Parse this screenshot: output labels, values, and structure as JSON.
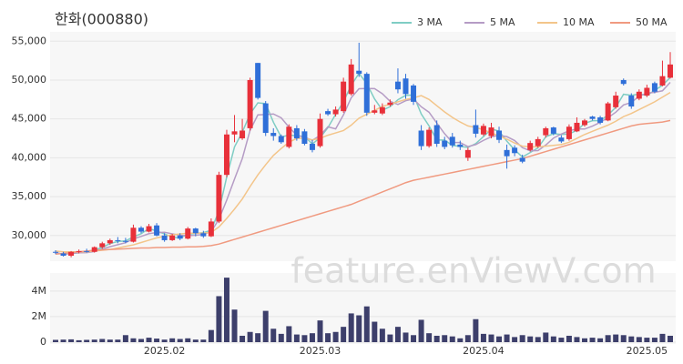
{
  "chart_data": {
    "type": "candlestick",
    "title": "한화(000880)",
    "watermark": "feature.enViewV.com",
    "legend": "top-right",
    "grid": true,
    "up_color": "#e8303a",
    "down_color": "#2f6fd8",
    "categories": [
      null,
      null,
      null,
      null,
      null,
      null,
      null,
      null,
      null,
      null,
      null,
      null,
      null,
      null,
      "2025.02",
      null,
      null,
      null,
      null,
      null,
      null,
      null,
      null,
      null,
      null,
      null,
      null,
      null,
      null,
      null,
      null,
      null,
      null,
      null,
      "2025.03",
      null,
      null,
      null,
      null,
      null,
      null,
      null,
      null,
      null,
      null,
      null,
      null,
      null,
      null,
      null,
      null,
      null,
      null,
      null,
      null,
      "2025.04",
      null,
      null,
      null,
      null,
      null,
      null,
      null,
      null,
      null,
      null,
      null,
      null,
      null,
      null,
      null,
      null,
      null,
      null,
      null,
      null,
      "2025.05",
      null,
      null,
      null
    ],
    "open": [
      27900,
      27700,
      27400,
      27900,
      28000,
      27900,
      28500,
      29000,
      29400,
      29300,
      29200,
      31000,
      30500,
      31300,
      30000,
      29400,
      30000,
      29600,
      30900,
      30300,
      29900,
      31800,
      37800,
      43000,
      42500,
      43800,
      52200,
      47000,
      43200,
      42800,
      41400,
      43800,
      43400,
      41800,
      41500,
      46000,
      45600,
      46000,
      48200,
      51200,
      50800,
      45800,
      45700,
      46800,
      49800,
      50200,
      49300,
      43500,
      41500,
      44200,
      42200,
      42700,
      41700,
      40000,
      44200,
      43000,
      42800,
      43500,
      41000,
      41300,
      40000,
      41000,
      41500,
      42900,
      43900,
      42600,
      42400,
      43400,
      44200,
      45300,
      45200,
      44800,
      46500,
      50000,
      48000,
      47600,
      48000,
      49600,
      49300,
      50300
    ],
    "high": [
      28100,
      27900,
      28000,
      28200,
      28300,
      28600,
      29200,
      29600,
      29800,
      29700,
      31400,
      31200,
      31500,
      31600,
      30300,
      30200,
      30300,
      31100,
      31000,
      30600,
      32200,
      38200,
      43600,
      45500,
      45000,
      50300,
      52200,
      47300,
      43800,
      43000,
      44300,
      44200,
      43700,
      42300,
      45700,
      46300,
      46600,
      50300,
      52700,
      54800,
      51000,
      46800,
      47000,
      47500,
      51500,
      50800,
      49500,
      44200,
      43900,
      44800,
      42700,
      43200,
      42200,
      41300,
      46200,
      44400,
      44500,
      44000,
      41700,
      41600,
      40400,
      42200,
      42700,
      44000,
      44000,
      42900,
      44300,
      45200,
      45000,
      45400,
      45400,
      47200,
      48500,
      50200,
      48300,
      48800,
      49400,
      49800,
      52500,
      53600
    ],
    "low": [
      27600,
      27300,
      27200,
      27700,
      27800,
      27800,
      28300,
      28800,
      29000,
      29000,
      29100,
      30300,
      30400,
      29900,
      29200,
      29300,
      29400,
      29500,
      29900,
      29700,
      29800,
      31600,
      37500,
      42000,
      42300,
      43500,
      47500,
      42800,
      42200,
      41800,
      41200,
      42200,
      41600,
      40700,
      41300,
      45400,
      45300,
      45800,
      48000,
      50400,
      45400,
      45600,
      45500,
      46600,
      48300,
      47600,
      46800,
      41000,
      41300,
      41400,
      41100,
      41300,
      41000,
      39600,
      42600,
      42800,
      42500,
      41900,
      38600,
      40200,
      39300,
      40800,
      41300,
      42600,
      42900,
      41900,
      42200,
      43300,
      44000,
      44800,
      44300,
      44700,
      46300,
      49300,
      46300,
      47400,
      47800,
      48300,
      49200,
      50200
    ],
    "close": [
      27800,
      27400,
      27900,
      28000,
      27900,
      28500,
      29000,
      29400,
      29300,
      29200,
      31000,
      30500,
      31200,
      30000,
      29400,
      30000,
      29600,
      30900,
      30300,
      29900,
      31800,
      37800,
      43000,
      43400,
      43500,
      50000,
      47700,
      43200,
      42800,
      42000,
      44000,
      42500,
      41800,
      41000,
      45000,
      45600,
      46200,
      49800,
      52000,
      50800,
      45800,
      46100,
      46500,
      47100,
      48800,
      48200,
      47200,
      41500,
      43600,
      41800,
      41400,
      41600,
      41400,
      41000,
      43100,
      44100,
      43900,
      42300,
      40200,
      40600,
      39500,
      41900,
      42400,
      43800,
      43100,
      42100,
      44000,
      44500,
      44800,
      45000,
      44500,
      47000,
      48000,
      49500,
      46600,
      48500,
      49000,
      48500,
      50500,
      52000
    ],
    "ylim": [
      26700,
      56200
    ],
    "yticks": [
      {
        "value": 30000,
        "label": "30,000"
      },
      {
        "value": 35000,
        "label": "35,000"
      },
      {
        "value": 40000,
        "label": "40,000"
      },
      {
        "value": 45000,
        "label": "45,000"
      },
      {
        "value": 50000,
        "label": "50,000"
      },
      {
        "value": 55000,
        "label": "55,000"
      }
    ],
    "series": [
      {
        "name": "3 MA",
        "color": "#7fcdc4",
        "values": [
          27800,
          27600,
          27700,
          27770,
          27930,
          28130,
          28470,
          28970,
          29230,
          29300,
          29830,
          30230,
          30900,
          30570,
          30200,
          29800,
          29670,
          30170,
          30270,
          30370,
          30670,
          33170,
          37530,
          41400,
          43300,
          45630,
          47070,
          46970,
          44570,
          42670,
          42930,
          42830,
          42770,
          41770,
          42600,
          43870,
          45600,
          47200,
          49330,
          50870,
          49530,
          47570,
          46130,
          46570,
          47470,
          48030,
          48070,
          45630,
          44100,
          42300,
          42270,
          41600,
          41470,
          41330,
          41830,
          42730,
          43700,
          43430,
          42130,
          41030,
          40100,
          40670,
          41270,
          42700,
          43100,
          43000,
          43070,
          43530,
          44430,
          44770,
          44770,
          45500,
          46500,
          48170,
          48030,
          48200,
          48030,
          48670,
          49330,
          50330
        ]
      },
      {
        "name": "5 MA",
        "color": "#b59cc5",
        "values": [
          27800,
          27600,
          27700,
          27780,
          27800,
          27940,
          28260,
          28560,
          28820,
          29080,
          29580,
          29880,
          30240,
          30380,
          30420,
          30220,
          30040,
          29980,
          30040,
          30140,
          30500,
          32100,
          34560,
          37260,
          39900,
          43540,
          45520,
          45560,
          45640,
          45140,
          43940,
          42900,
          42620,
          42260,
          42860,
          43980,
          43720,
          45520,
          47720,
          48880,
          48920,
          48900,
          48240,
          47260,
          46860,
          47340,
          47560,
          46560,
          45860,
          44460,
          43100,
          41980,
          41960,
          41440,
          41700,
          42240,
          42700,
          42880,
          42720,
          42220,
          41300,
          40900,
          40920,
          41640,
          42540,
          43060,
          43480,
          43700,
          43700,
          44080,
          44560,
          45160,
          45860,
          46800,
          47120,
          47920,
          48320,
          48420,
          48620,
          49700
        ]
      },
      {
        "name": "10 MA",
        "color": "#f3c58a",
        "values": [
          28000,
          27900,
          27900,
          27900,
          27900,
          28000,
          28100,
          28200,
          28400,
          28600,
          28800,
          29100,
          29400,
          29700,
          29900,
          30100,
          30200,
          30300,
          30300,
          30300,
          30400,
          31100,
          32200,
          33400,
          34700,
          36300,
          37800,
          39100,
          40300,
          41200,
          42000,
          42500,
          42500,
          42300,
          42500,
          42900,
          43200,
          43500,
          44200,
          45100,
          45600,
          46100,
          46600,
          46900,
          47200,
          47500,
          47700,
          48000,
          47500,
          46700,
          45900,
          45200,
          44600,
          44100,
          43900,
          43600,
          43200,
          42800,
          42400,
          41900,
          41500,
          41400,
          41400,
          41500,
          41600,
          41700,
          42000,
          42500,
          43000,
          43400,
          43800,
          44200,
          44700,
          45300,
          45700,
          46200,
          46700,
          47200,
          47800,
          48400
        ]
      },
      {
        "name": "50 MA",
        "color": "#f09a80",
        "values": [
          27600,
          27700,
          27800,
          27900,
          28000,
          28100,
          28150,
          28200,
          28250,
          28300,
          28350,
          28400,
          28400,
          28450,
          28450,
          28500,
          28500,
          28550,
          28550,
          28600,
          28700,
          28900,
          29200,
          29500,
          29800,
          30100,
          30400,
          30700,
          31000,
          31300,
          31600,
          31900,
          32200,
          32500,
          32800,
          33100,
          33400,
          33700,
          34000,
          34400,
          34800,
          35200,
          35600,
          36000,
          36400,
          36800,
          37100,
          37300,
          37500,
          37700,
          37900,
          38100,
          38300,
          38500,
          38700,
          38900,
          39100,
          39300,
          39500,
          39700,
          39900,
          40200,
          40500,
          40800,
          41100,
          41400,
          41700,
          42000,
          42300,
          42600,
          42900,
          43200,
          43500,
          43800,
          44100,
          44300,
          44400,
          44500,
          44600,
          44800
        ]
      }
    ],
    "volume": {
      "color": "#3d3f6b",
      "values": [
        180000,
        200000,
        220000,
        150000,
        180000,
        200000,
        250000,
        200000,
        200000,
        550000,
        300000,
        250000,
        350000,
        280000,
        200000,
        300000,
        250000,
        300000,
        200000,
        200000,
        950000,
        3600000,
        5050000,
        2550000,
        500000,
        800000,
        700000,
        2450000,
        1050000,
        650000,
        1250000,
        600000,
        550000,
        700000,
        1700000,
        700000,
        800000,
        1200000,
        2250000,
        2100000,
        2800000,
        1600000,
        1050000,
        600000,
        1200000,
        750000,
        550000,
        1750000,
        700000,
        500000,
        550000,
        450000,
        300000,
        550000,
        1800000,
        650000,
        600000,
        450000,
        600000,
        400000,
        550000,
        450000,
        400000,
        750000,
        450000,
        350000,
        500000,
        400000,
        300000,
        350000,
        300000,
        550000,
        600000,
        550000,
        450000,
        400000,
        350000,
        350000,
        650000,
        500000
      ],
      "ylim": [
        0,
        5200000
      ],
      "yticks": [
        0,
        {
          "value": 2000000,
          "label": "2M"
        },
        {
          "value": 4000000,
          "label": "4M"
        }
      ]
    }
  }
}
